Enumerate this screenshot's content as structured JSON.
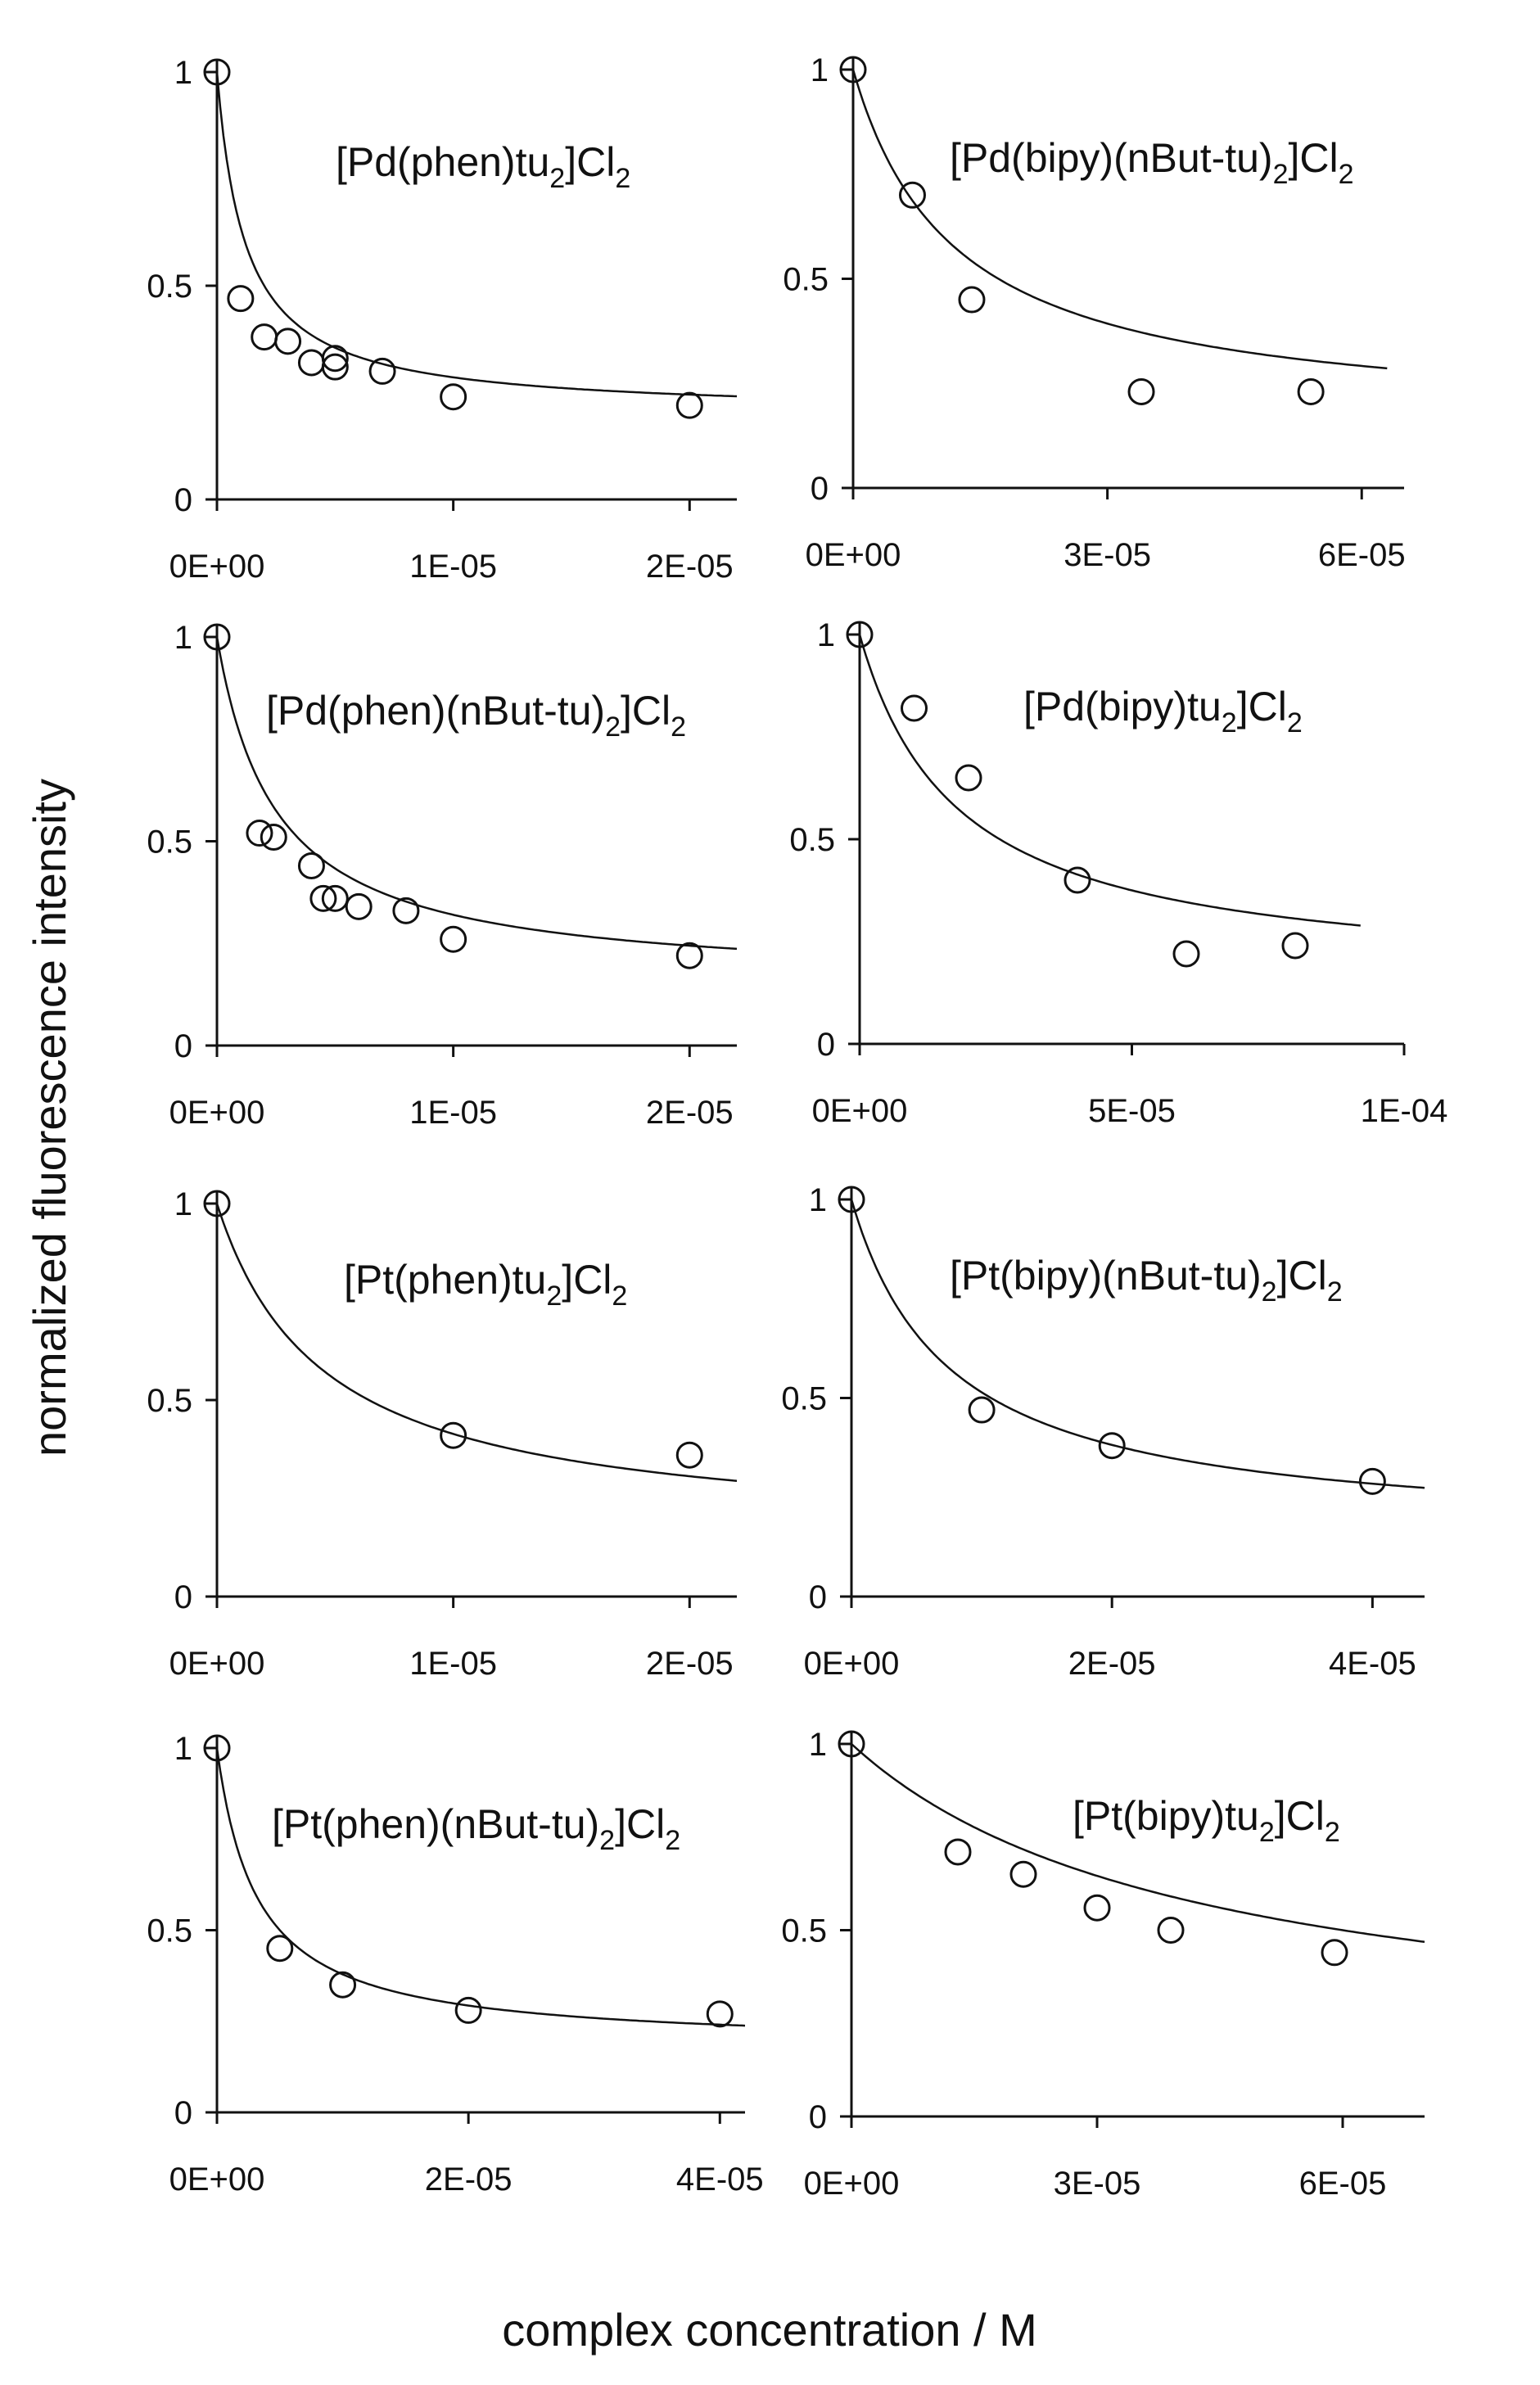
{
  "figure": {
    "ylabel": "normalized fluorescence intensity",
    "xlabel": "complex concentration / M"
  },
  "chart_data": [
    {
      "type": "scatter",
      "title": {
        "pre": "[Pd(phen)tu",
        "sub": "2",
        "mid": "]Cl",
        "sub2": "2",
        "tail": ""
      },
      "xlim": [
        0,
        2.2e-05
      ],
      "ylim": [
        0,
        1
      ],
      "xticks": [
        0,
        1e-05,
        2e-05
      ],
      "xticklabels": [
        "0E+00",
        "1E-05",
        "2E-05"
      ],
      "yticks": [
        0,
        0.5,
        1
      ],
      "yticklabels": [
        "0",
        "0.5",
        "1"
      ],
      "points": [
        [
          0,
          1.0
        ],
        [
          1e-06,
          0.47
        ],
        [
          2e-06,
          0.38
        ],
        [
          3e-06,
          0.37
        ],
        [
          4e-06,
          0.32
        ],
        [
          5e-06,
          0.33
        ],
        [
          5e-06,
          0.31
        ],
        [
          7e-06,
          0.3
        ],
        [
          1e-05,
          0.24
        ],
        [
          2e-05,
          0.22
        ]
      ],
      "fit": {
        "model": "saturation",
        "amp": 0.8,
        "K": 1.2e-06,
        "xmax": 2.2e-05
      }
    },
    {
      "type": "scatter",
      "title": {
        "pre": "[Pd(bipy)(nBut-tu)",
        "sub": "2",
        "mid": "]Cl",
        "sub2": "2",
        "tail": ""
      },
      "xlim": [
        0,
        6.5e-05
      ],
      "ylim": [
        0,
        1
      ],
      "xticks": [
        0,
        3e-05,
        6e-05
      ],
      "xticklabels": [
        "0E+00",
        "3E-05",
        "6E-05"
      ],
      "yticks": [
        0,
        0.5,
        1
      ],
      "yticklabels": [
        "0",
        "0.5",
        "1"
      ],
      "points": [
        [
          0,
          1.0
        ],
        [
          7e-06,
          0.7
        ],
        [
          1.4e-05,
          0.45
        ],
        [
          3.4e-05,
          0.23
        ],
        [
          5.4e-05,
          0.23
        ]
      ],
      "fit": {
        "model": "saturation",
        "amp": 0.85,
        "K": 1.2e-05,
        "xmax": 6.3e-05
      }
    },
    {
      "type": "scatter",
      "title": {
        "pre": "[Pd(phen)(nBut-tu)",
        "sub": "2",
        "mid": "]Cl",
        "sub2": "2",
        "tail": ""
      },
      "xlim": [
        0,
        2.2e-05
      ],
      "ylim": [
        0,
        1
      ],
      "xticks": [
        0,
        1e-05,
        2e-05
      ],
      "xticklabels": [
        "0E+00",
        "1E-05",
        "2E-05"
      ],
      "yticks": [
        0,
        0.5,
        1
      ],
      "yticklabels": [
        "0",
        "0.5",
        "1"
      ],
      "points": [
        [
          0,
          1.0
        ],
        [
          1.8e-06,
          0.52
        ],
        [
          2.4e-06,
          0.51
        ],
        [
          4e-06,
          0.44
        ],
        [
          4.5e-06,
          0.36
        ],
        [
          5e-06,
          0.36
        ],
        [
          6e-06,
          0.34
        ],
        [
          8e-06,
          0.33
        ],
        [
          1e-05,
          0.26
        ],
        [
          2e-05,
          0.22
        ]
      ],
      "fit": {
        "model": "saturation",
        "amp": 0.85,
        "K": 2.5e-06,
        "xmax": 2.2e-05
      }
    },
    {
      "type": "scatter",
      "title": {
        "pre": "[Pd(bipy)tu",
        "sub": "2",
        "mid": "]Cl",
        "sub2": "2",
        "tail": ""
      },
      "xlim": [
        0,
        0.0001
      ],
      "ylim": [
        0,
        1
      ],
      "xticks": [
        0,
        5e-05,
        0.0001
      ],
      "xticklabels": [
        "0E+00",
        "5E-05",
        "1E-04"
      ],
      "yticks": [
        0,
        0.5,
        1
      ],
      "yticklabels": [
        "0",
        "0.5",
        "1"
      ],
      "points": [
        [
          0,
          1.0
        ],
        [
          1e-05,
          0.82
        ],
        [
          2e-05,
          0.65
        ],
        [
          4e-05,
          0.4
        ],
        [
          6e-05,
          0.22
        ],
        [
          8e-05,
          0.24
        ]
      ],
      "fit": {
        "model": "saturation",
        "amp": 0.85,
        "K": 1.8e-05,
        "xmax": 9.2e-05
      }
    },
    {
      "type": "scatter",
      "title": {
        "pre": "[Pt(phen)tu",
        "sub": "2",
        "mid": "]Cl",
        "sub2": "2",
        "tail": ""
      },
      "xlim": [
        0,
        2.2e-05
      ],
      "ylim": [
        0,
        1
      ],
      "xticks": [
        0,
        1e-05,
        2e-05
      ],
      "xticklabels": [
        "0E+00",
        "1E-05",
        "2E-05"
      ],
      "yticks": [
        0,
        0.5,
        1
      ],
      "yticklabels": [
        "0",
        "0.5",
        "1"
      ],
      "points": [
        [
          0,
          1.0
        ],
        [
          1e-05,
          0.41
        ],
        [
          2e-05,
          0.36
        ]
      ],
      "fit": {
        "model": "saturation",
        "amp": 0.85,
        "K": 4.5e-06,
        "xmax": 2.2e-05
      }
    },
    {
      "type": "scatter",
      "title": {
        "pre": "[Pt(bipy)(nBut-tu)",
        "sub": "2",
        "mid": "]Cl",
        "sub2": "2",
        "tail": ""
      },
      "xlim": [
        0,
        4.4e-05
      ],
      "ylim": [
        0,
        1
      ],
      "xticks": [
        0,
        2e-05,
        4e-05
      ],
      "xticklabels": [
        "0E+00",
        "2E-05",
        "4E-05"
      ],
      "yticks": [
        0,
        0.5,
        1
      ],
      "yticklabels": [
        "0",
        "0.5",
        "1"
      ],
      "points": [
        [
          0,
          1.0
        ],
        [
          1e-05,
          0.47
        ],
        [
          2e-05,
          0.38
        ],
        [
          4e-05,
          0.29
        ]
      ],
      "fit": {
        "model": "saturation",
        "amp": 0.85,
        "K": 7.5e-06,
        "xmax": 4.4e-05
      }
    },
    {
      "type": "scatter",
      "title": {
        "pre": "[Pt(phen)(nBut-tu)",
        "sub": "2",
        "mid": "]Cl",
        "sub2": "2",
        "tail": ""
      },
      "xlim": [
        0,
        4.2e-05
      ],
      "ylim": [
        0,
        1
      ],
      "xticks": [
        0,
        2e-05,
        4e-05
      ],
      "xticklabels": [
        "0E+00",
        "2E-05",
        "4E-05"
      ],
      "yticks": [
        0,
        0.5,
        1
      ],
      "yticklabels": [
        "0",
        "0.5",
        "1"
      ],
      "points": [
        [
          0,
          1.0
        ],
        [
          5e-06,
          0.45
        ],
        [
          1e-05,
          0.35
        ],
        [
          2e-05,
          0.28
        ],
        [
          4e-05,
          0.27
        ]
      ],
      "fit": {
        "model": "saturation",
        "amp": 0.82,
        "K": 3.2e-06,
        "xmax": 4.2e-05
      }
    },
    {
      "type": "scatter",
      "title": {
        "pre": "[Pt(bipy)tu",
        "sub": "2",
        "mid": "]Cl",
        "sub2": "2",
        "tail": ""
      },
      "xlim": [
        0,
        7e-05
      ],
      "ylim": [
        0,
        1
      ],
      "xticks": [
        0,
        3e-05,
        6e-05
      ],
      "xticklabels": [
        "0E+00",
        "3E-05",
        "6E-05"
      ],
      "yticks": [
        0,
        0.5,
        1
      ],
      "yticklabels": [
        "0",
        "0.5",
        "1"
      ],
      "points": [
        [
          0,
          1.0
        ],
        [
          1.3e-05,
          0.71
        ],
        [
          2.1e-05,
          0.65
        ],
        [
          3e-05,
          0.56
        ],
        [
          3.9e-05,
          0.5
        ],
        [
          5.9e-05,
          0.44
        ]
      ],
      "fit": {
        "model": "saturation",
        "amp": 0.85,
        "K": 4.2e-05,
        "xmax": 7e-05
      }
    }
  ]
}
